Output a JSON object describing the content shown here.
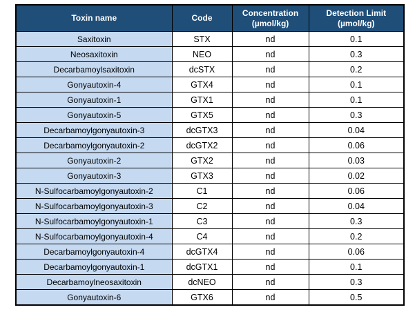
{
  "colors": {
    "header_bg": "#1F4E79",
    "header_text": "#FFFFFF",
    "name_col_bg": "#C5D9F1",
    "border": "#000000",
    "page_bg": "#FFFFFF"
  },
  "table": {
    "headers": [
      {
        "label": "Toxin name",
        "unit": ""
      },
      {
        "label": "Code",
        "unit": ""
      },
      {
        "label": "Concentration",
        "unit": "(µmol/kg)"
      },
      {
        "label": "Detection Limit",
        "unit": "(µmol/kg)"
      }
    ],
    "rows": [
      {
        "name": "Saxitoxin",
        "code": "STX",
        "concentration": "nd",
        "detection_limit": "0.1"
      },
      {
        "name": "Neosaxitoxin",
        "code": "NEO",
        "concentration": "nd",
        "detection_limit": "0.3"
      },
      {
        "name": "Decarbamoylsaxitoxin",
        "code": "dcSTX",
        "concentration": "nd",
        "detection_limit": "0.2"
      },
      {
        "name": "Gonyautoxin-4",
        "code": "GTX4",
        "concentration": "nd",
        "detection_limit": "0.1"
      },
      {
        "name": "Gonyautoxin-1",
        "code": "GTX1",
        "concentration": "nd",
        "detection_limit": "0.1"
      },
      {
        "name": "Gonyautoxin-5",
        "code": "GTX5",
        "concentration": "nd",
        "detection_limit": "0.3"
      },
      {
        "name": "Decarbamoylgonyautoxin-3",
        "code": "dcGTX3",
        "concentration": "nd",
        "detection_limit": "0.04"
      },
      {
        "name": "Decarbamoylgonyautoxin-2",
        "code": "dcGTX2",
        "concentration": "nd",
        "detection_limit": "0.06"
      },
      {
        "name": "Gonyautoxin-2",
        "code": "GTX2",
        "concentration": "nd",
        "detection_limit": "0.03"
      },
      {
        "name": "Gonyautoxin-3",
        "code": "GTX3",
        "concentration": "nd",
        "detection_limit": "0.02"
      },
      {
        "name": "N-Sulfocarbamoylgonyautoxin-2",
        "code": "C1",
        "concentration": "nd",
        "detection_limit": "0.06"
      },
      {
        "name": "N-Sulfocarbamoylgonyautoxin-3",
        "code": "C2",
        "concentration": "nd",
        "detection_limit": "0.04"
      },
      {
        "name": "N-Sulfocarbamoylgonyautoxin-1",
        "code": "C3",
        "concentration": "nd",
        "detection_limit": "0.3"
      },
      {
        "name": "N-Sulfocarbamoylgonyautoxin-4",
        "code": "C4",
        "concentration": "nd",
        "detection_limit": "0.2"
      },
      {
        "name": "Decarbamoylgonyautoxin-4",
        "code": "dcGTX4",
        "concentration": "nd",
        "detection_limit": "0.06"
      },
      {
        "name": "Decarbamoylgonyautoxin-1",
        "code": "dcGTX1",
        "concentration": "nd",
        "detection_limit": "0.1"
      },
      {
        "name": "Decarbamoylneosaxitoxin",
        "code": "dcNEO",
        "concentration": "nd",
        "detection_limit": "0.3"
      },
      {
        "name": "Gonyautoxin-6",
        "code": "GTX6",
        "concentration": "nd",
        "detection_limit": "0.5"
      }
    ]
  }
}
